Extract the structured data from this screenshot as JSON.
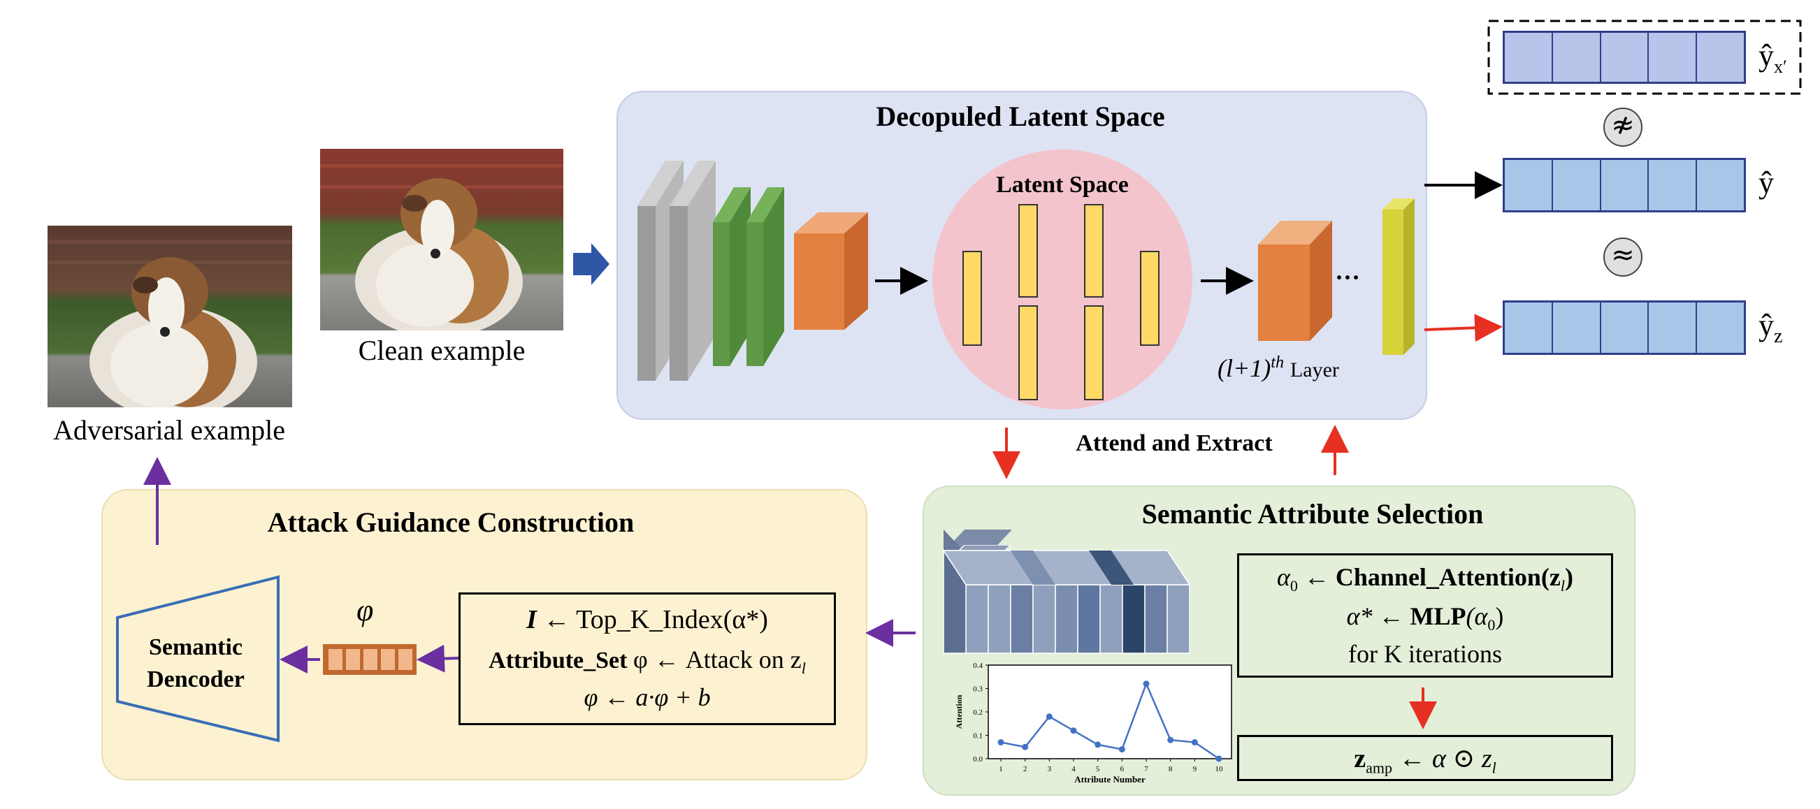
{
  "images": {
    "adversarial_caption": "Adversarial example",
    "clean_caption": "Clean example"
  },
  "latent_panel": {
    "title": "Decopuled Latent Space",
    "latent_space_label": "Latent Space",
    "layer_label_prefix": "(l+1)",
    "layer_label_sup": "th",
    "layer_label_suffix": "Layer",
    "ellipsis": "···"
  },
  "outputs": {
    "y_adv": "ŷ",
    "y_adv_sub": "x′",
    "y_clean": "ŷ",
    "y_z": "ŷ",
    "y_z_sub": "z",
    "not_approx_symbol": "≉",
    "approx_symbol": "≈"
  },
  "attend_extract": "Attend and Extract",
  "attack_panel": {
    "title": "Attack Guidance Construction",
    "decoder_label_line1": "Semantic",
    "decoder_label_line2": "Dencoder",
    "phi_symbol": "φ",
    "formula_line1_lhs": "I",
    "formula_line1_rhs": "← Top_K_Index(α*)",
    "formula_line2_bold": "Attribute_Set",
    "formula_line2_rest": "φ ← Attack on z",
    "formula_line2_sub": "l",
    "formula_line3": "φ ← a·φ + b"
  },
  "semantic_panel": {
    "title": "Semantic Attribute Selection",
    "formula_line1_a": "α",
    "formula_line1_a_sub": "0",
    "formula_line1_bold": "← Channel_Attention(z",
    "formula_line1_sub": "l",
    "formula_line1_end": ")",
    "formula_line2_a": "α*",
    "formula_line2_bold": "← MLP",
    "formula_line2_rest": "(α",
    "formula_line2_sub": "0",
    "formula_line2_end": ")",
    "formula_line3": "for K iterations",
    "amp_lhs": "z",
    "amp_lhs_sub": "amp",
    "amp_rhs": "← α ⊙ z",
    "amp_rhs_sub": "l"
  },
  "chart_data": {
    "type": "line",
    "x": [
      1,
      2,
      3,
      4,
      5,
      6,
      7,
      8,
      9,
      10
    ],
    "y": [
      0.07,
      0.05,
      0.18,
      0.12,
      0.06,
      0.04,
      0.32,
      0.08,
      0.07,
      0.0
    ],
    "xlabel": "Attribute Number",
    "ylabel": "Attention",
    "ylim": [
      0.0,
      0.4
    ],
    "yticks": [
      "0.0",
      "0.1",
      "0.2",
      "0.3",
      "0.4"
    ],
    "xticks": [
      "1",
      "2",
      "3",
      "4",
      "5",
      "6",
      "7",
      "8",
      "9",
      "10"
    ],
    "grid": false
  },
  "colors": {
    "latent_panel_bg": "#dde3f3",
    "attack_panel_bg": "#fcf2d1",
    "semantic_panel_bg": "#e3efd9",
    "latent_circle": "#f4c4cc",
    "yellow_bar": "#ffd966",
    "orange_block": "#e48140",
    "green_block": "#5f9947",
    "gray_block": "#a0a0a0",
    "output_cell": "#a8c6e8",
    "output_adv_cell": "#b9c4ea",
    "red_arrow": "#e53022",
    "purple_arrow": "#6b2fa0",
    "blue_arrow": "#2e57a6",
    "series_line": "#4472c4"
  }
}
